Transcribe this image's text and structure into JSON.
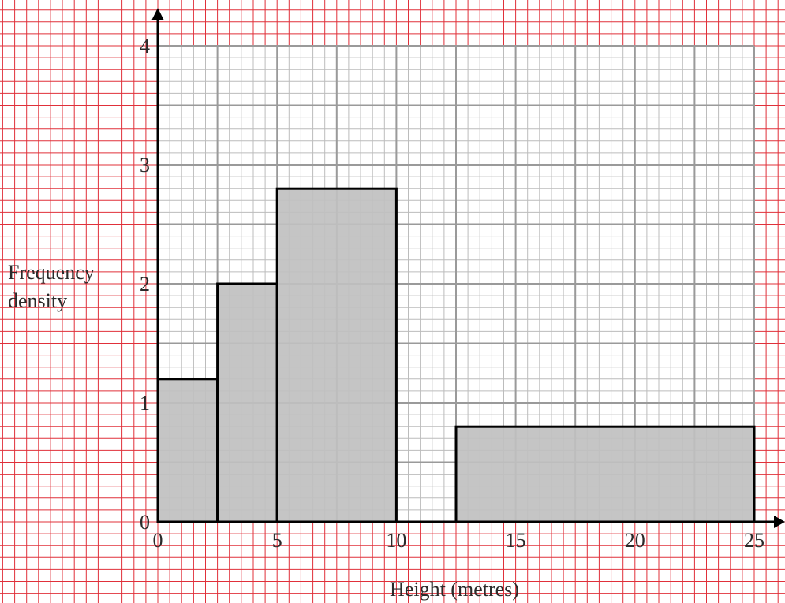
{
  "colors": {
    "background": "#ffffff",
    "outer_grid": "#e0303a",
    "plot_grid_minor": "#bcbcbc",
    "plot_grid_major": "#9a9a9a",
    "bar_fill": "#c0c0c0",
    "bar_stroke": "#000000",
    "axis": "#000000"
  },
  "chart_data": {
    "type": "bar",
    "histogram": true,
    "title": "",
    "xlabel": "Height (metres)",
    "ylabel_lines": [
      "Frequency",
      "density"
    ],
    "xlim": [
      0,
      25
    ],
    "ylim": [
      0,
      4
    ],
    "xticks": [
      0,
      5,
      10,
      15,
      20,
      25
    ],
    "yticks": [
      0,
      1,
      2,
      3,
      4
    ],
    "grid": true,
    "bars": [
      {
        "x0": 0,
        "x1": 2.5,
        "value": 1.2
      },
      {
        "x0": 2.5,
        "x1": 5,
        "value": 2.0
      },
      {
        "x0": 5,
        "x1": 10,
        "value": 2.8
      },
      {
        "x0": 12.5,
        "x1": 25,
        "value": 0.8
      }
    ]
  }
}
